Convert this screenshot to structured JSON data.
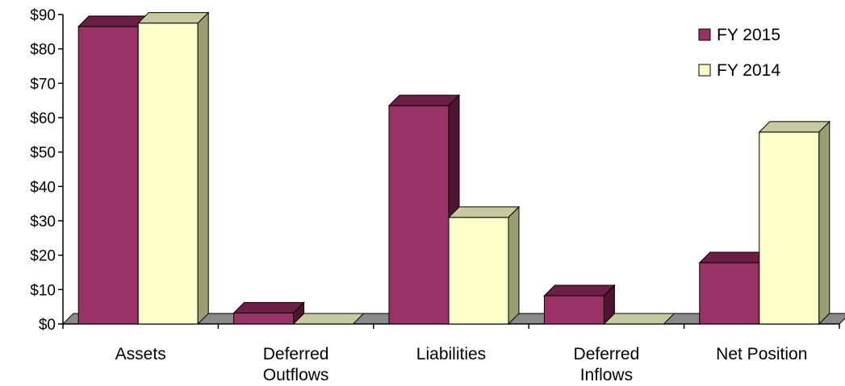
{
  "chart_data": {
    "type": "bar",
    "title": "",
    "xlabel": "",
    "ylabel": "",
    "categories": [
      "Assets",
      "Deferred\nOutflows",
      "Liabilities",
      "Deferred\nInflows",
      "Net Position"
    ],
    "series": [
      {
        "name": "FY 2015",
        "values": [
          86.5,
          3.2,
          63.5,
          8.2,
          17.8
        ],
        "color": "#993366",
        "top_color": "#6b1f44",
        "side_color": "#4e1430"
      },
      {
        "name": "FY 2014",
        "values": [
          87.5,
          0,
          31.0,
          0,
          55.8
        ],
        "color": "#ffffcc",
        "top_color": "#c9c9a0",
        "side_color": "#9d9d72"
      }
    ],
    "ylim": [
      0,
      90
    ],
    "yticks": [
      "$0",
      "$10",
      "$20",
      "$30",
      "$40",
      "$50",
      "$60",
      "$70",
      "$80",
      "$90"
    ],
    "legend_position": "top-right",
    "grid": false,
    "floor_color": "#8a8a8a"
  }
}
